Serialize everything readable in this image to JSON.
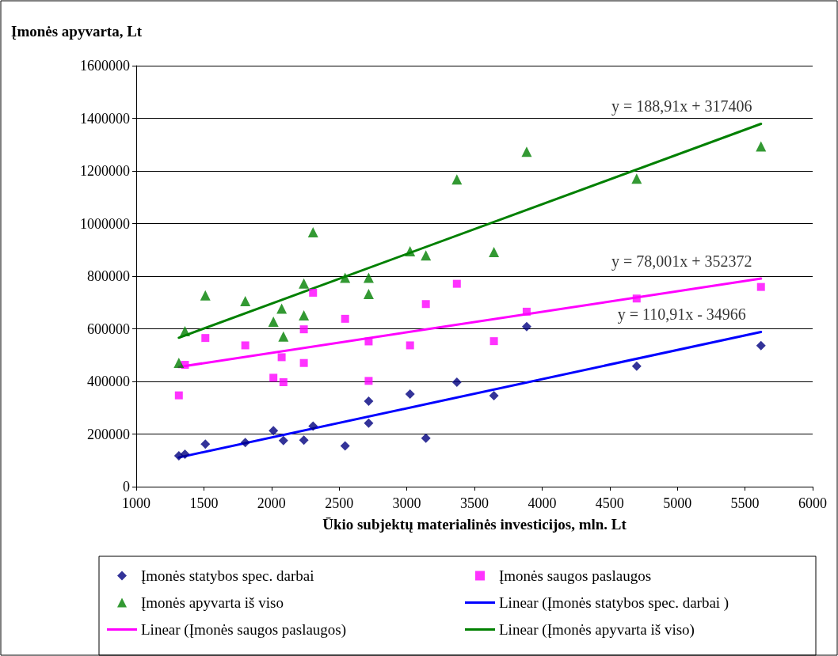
{
  "chart_data": {
    "type": "scatter",
    "xlabel": "Ūkio subjektų materialinės investicijos, mln. Lt",
    "ylabel": "Įmonės apyvarta, Lt",
    "xlim": [
      1000,
      6000
    ],
    "xticks": [
      1000,
      1500,
      2000,
      2500,
      3000,
      3500,
      4000,
      4500,
      5000,
      5500,
      6000
    ],
    "ylim": [
      0,
      1600000
    ],
    "yticks": [
      0,
      200000,
      400000,
      600000,
      800000,
      1000000,
      1200000,
      1400000,
      1600000
    ],
    "grid": "y",
    "legend": "bottom",
    "series": [
      {
        "name": "Įmonės statybos spec. darbai",
        "marker": "diamond",
        "color": "#000080",
        "x": [
          1315,
          1360,
          1511,
          1806,
          2014,
          2088,
          2239,
          2307,
          2544,
          2718,
          2718,
          3024,
          3141,
          3370,
          3644,
          3886,
          4699,
          5618
        ],
        "values": [
          117000,
          123000,
          162000,
          168000,
          213000,
          175000,
          177000,
          230000,
          155000,
          325000,
          241000,
          352000,
          184000,
          397000,
          346000,
          608000,
          458000,
          536000
        ]
      },
      {
        "name": "Įmonės saugos paslaugos",
        "marker": "square",
        "color": "#ff00ff",
        "x": [
          1315,
          1360,
          1511,
          1806,
          2014,
          2075,
          2088,
          2239,
          2239,
          2307,
          2544,
          2718,
          2718,
          3024,
          3141,
          3370,
          3644,
          3886,
          4699,
          5618
        ],
        "values": [
          347000,
          463000,
          565000,
          537000,
          414000,
          492000,
          397000,
          598000,
          470000,
          737000,
          638000,
          552000,
          402000,
          537000,
          694000,
          771000,
          553000,
          665000,
          715000,
          759000
        ]
      },
      {
        "name": "Įmonės apyvarta iš viso",
        "marker": "triangle",
        "color": "#008000",
        "x": [
          1315,
          1360,
          1511,
          1806,
          2014,
          2075,
          2088,
          2239,
          2239,
          2307,
          2544,
          2718,
          2718,
          3024,
          3141,
          3370,
          3644,
          3886,
          4699,
          5618
        ],
        "values": [
          471000,
          591000,
          727000,
          705000,
          627000,
          677000,
          571000,
          772000,
          651000,
          967000,
          794000,
          794000,
          732000,
          895000,
          879000,
          1168000,
          892000,
          1273000,
          1171000,
          1293000
        ]
      },
      {
        "name": "Linear (Įmonės statybos spec. darbai )",
        "type": "line",
        "marker": "none",
        "line_style": "solid",
        "color": "#0000ff",
        "x": [
          1315,
          5618
        ],
        "values": [
          111000,
          588000
        ]
      },
      {
        "name": "Linear (Įmonės saugos paslaugos)",
        "type": "line",
        "marker": "none",
        "line_style": "solid",
        "color": "#ff00ff",
        "x": [
          1315,
          5618
        ],
        "values": [
          455000,
          791000
        ]
      },
      {
        "name": "Linear (Įmonės apyvarta iš viso)",
        "type": "line",
        "marker": "none",
        "line_style": "solid",
        "color": "#008000",
        "x": [
          1315,
          5618
        ],
        "values": [
          566000,
          1379000
        ]
      }
    ],
    "annotations": [
      "y = 110,91x - 34966",
      "y = 78,001x + 352372",
      "y = 188,91x + 317406"
    ]
  }
}
